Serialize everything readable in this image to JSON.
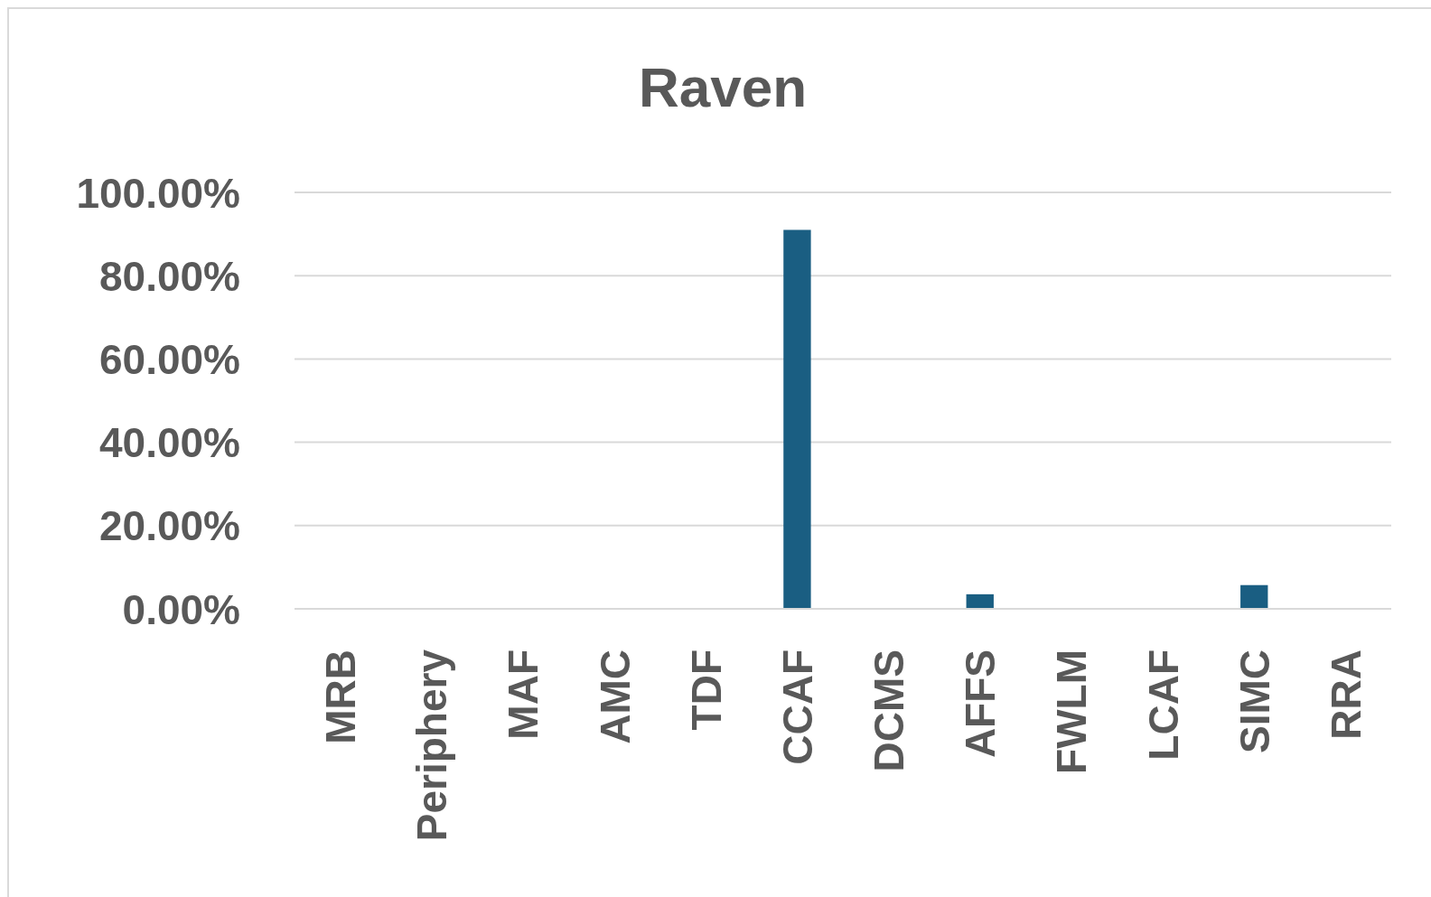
{
  "chart_data": {
    "type": "bar",
    "title": "Raven",
    "categories": [
      "MRB",
      "Periphery",
      "MAF",
      "AMC",
      "TDF",
      "CCAF",
      "DCMS",
      "AFFS",
      "FWLM",
      "LCAF",
      "SIMC",
      "RRA"
    ],
    "values": [
      0,
      0,
      0,
      0,
      0,
      91,
      0,
      3.5,
      0,
      0,
      5.7,
      0
    ],
    "color": "#1a5e82",
    "ylim": [
      0,
      100
    ],
    "yticks": [
      {
        "value": 0,
        "label": "0.00%"
      },
      {
        "value": 20,
        "label": "20.00%"
      },
      {
        "value": 40,
        "label": "40.00%"
      },
      {
        "value": 60,
        "label": "60.00%"
      },
      {
        "value": 80,
        "label": "80.00%"
      },
      {
        "value": 100,
        "label": "100.00%"
      }
    ],
    "grid": true
  }
}
